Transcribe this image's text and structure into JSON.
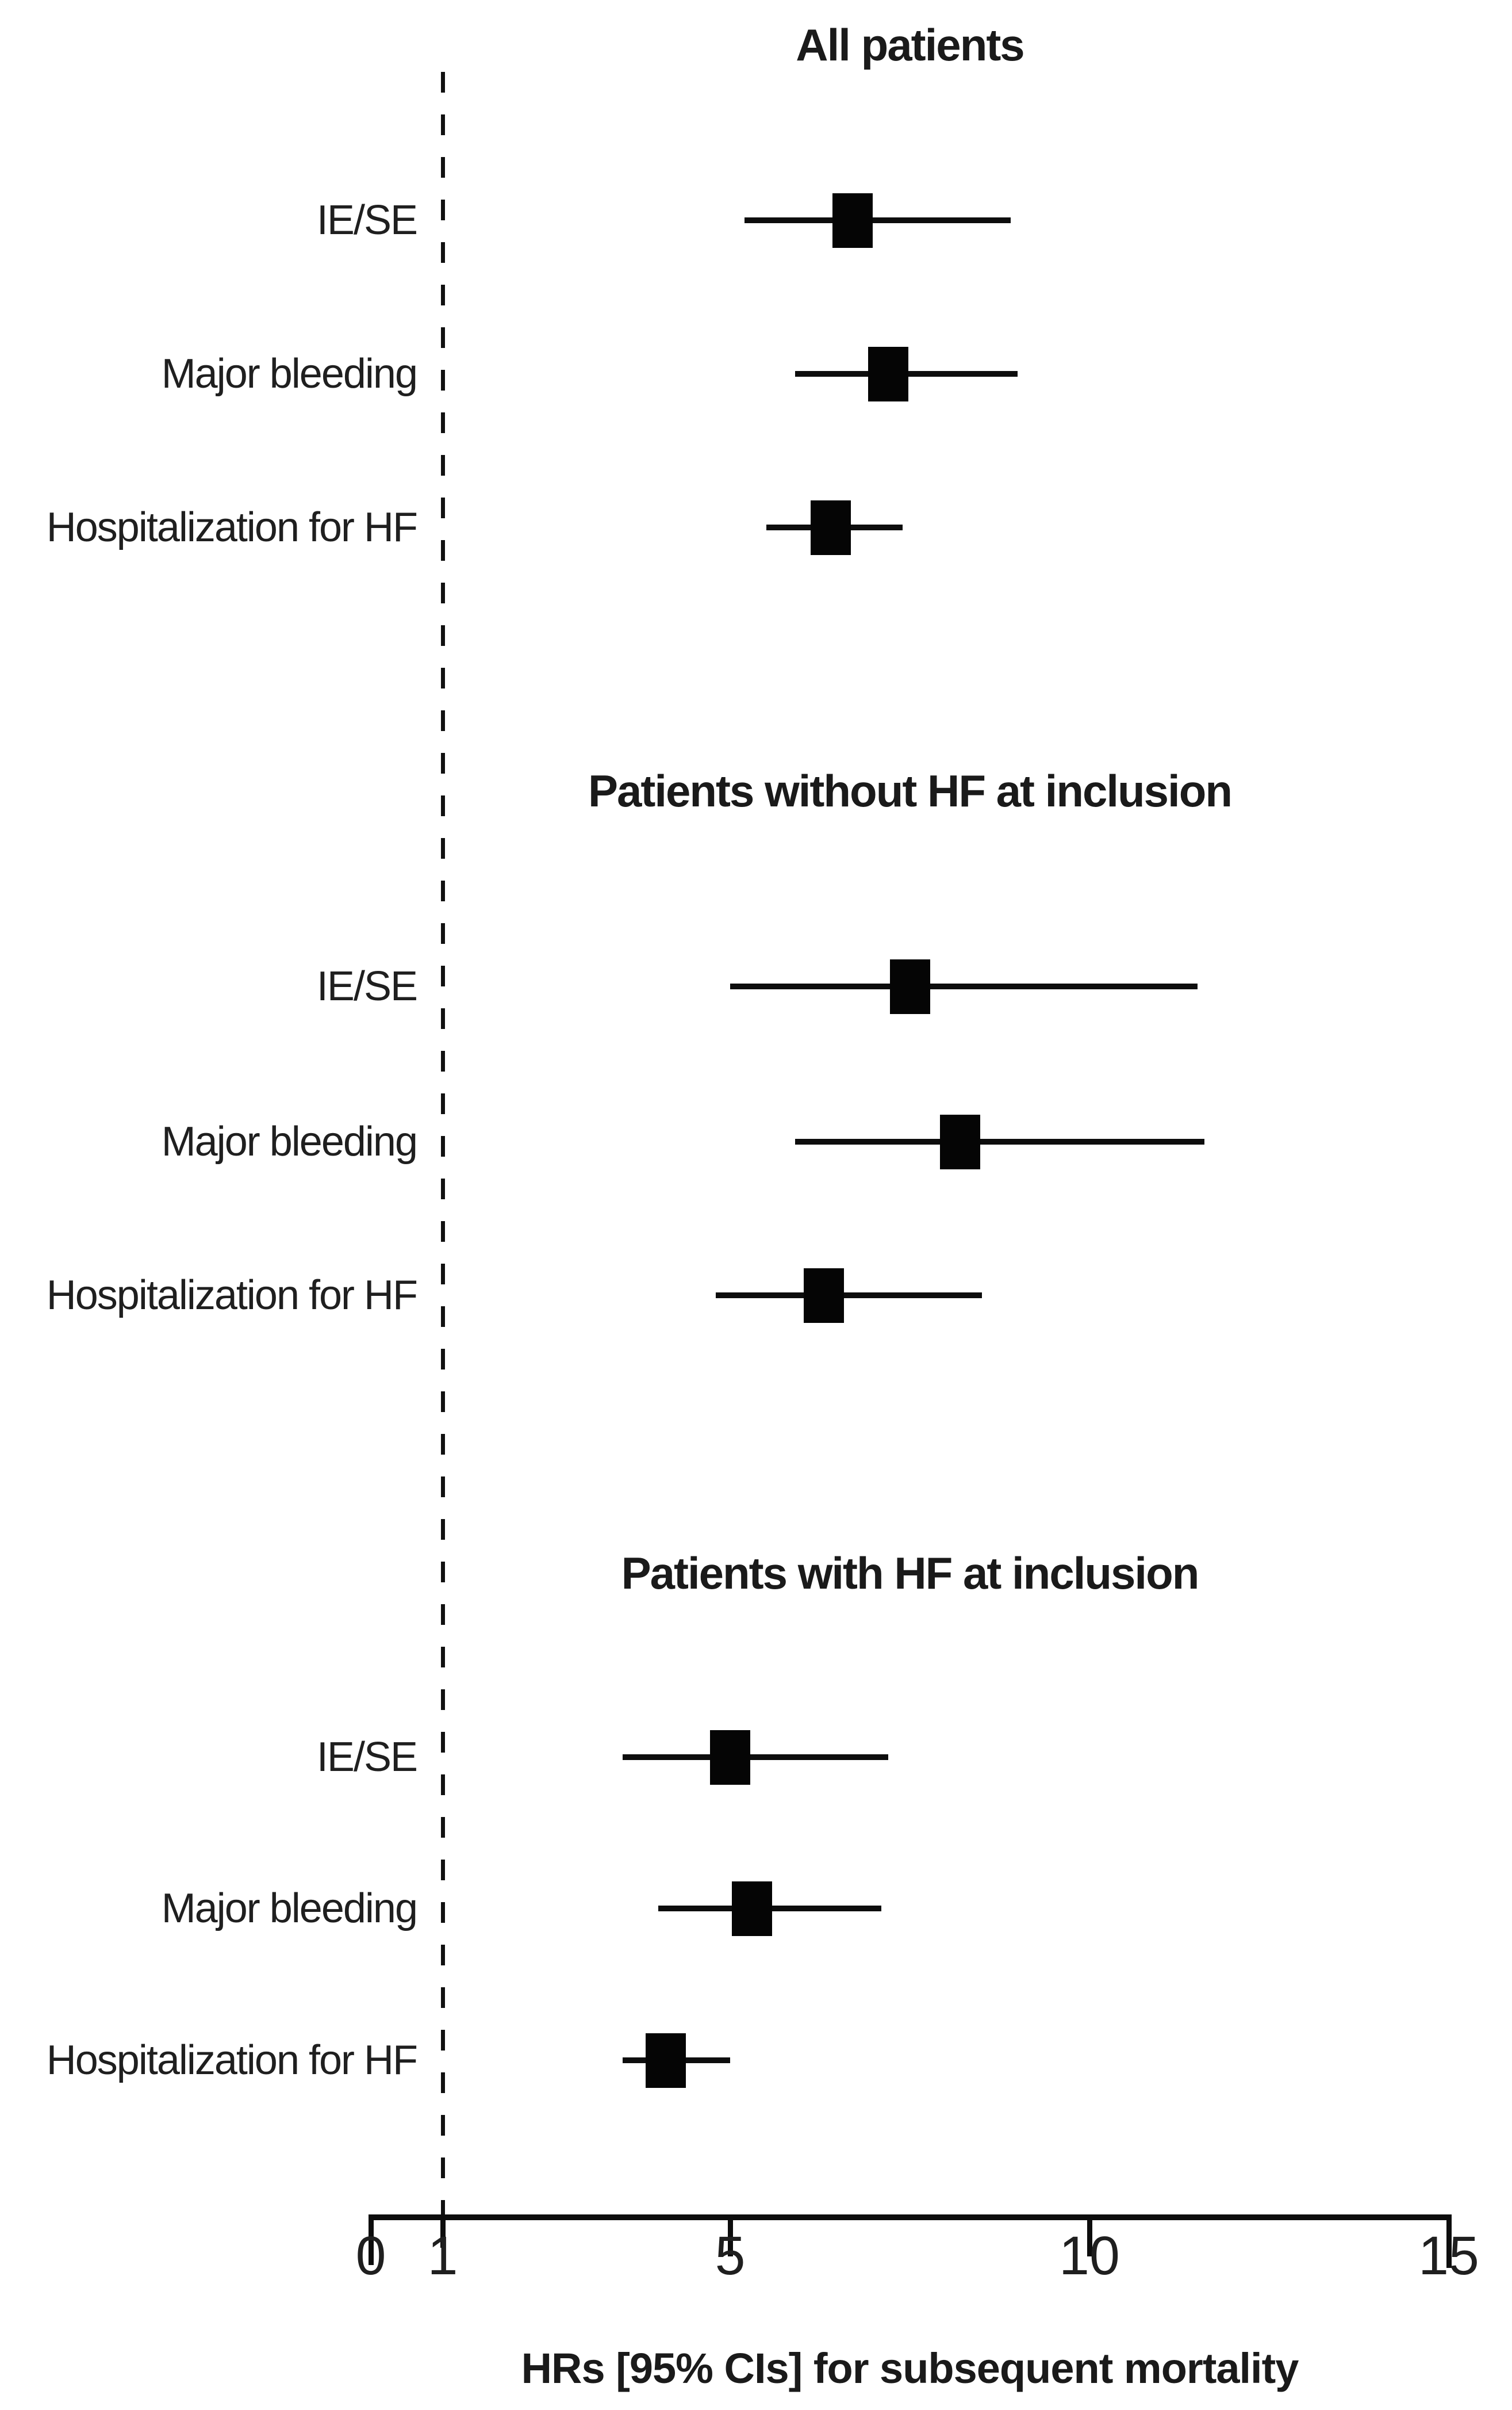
{
  "chart_data": {
    "type": "scatter",
    "subtype": "forest-plot",
    "xlabel": "HRs [95% CIs] for subsequent mortality",
    "x_ticks": [
      0,
      1,
      5,
      10,
      15
    ],
    "xlim": [
      0,
      15
    ],
    "reference_line": 1,
    "grid": false,
    "legend": "none",
    "groups": [
      {
        "title": "All patients",
        "rows": [
          {
            "label": "IE/SE",
            "hr": 6.7,
            "ci_low": 5.2,
            "ci_high": 8.9
          },
          {
            "label": "Major bleeding",
            "hr": 7.2,
            "ci_low": 5.9,
            "ci_high": 9.0
          },
          {
            "label": "Hospitalization for HF",
            "hr": 6.4,
            "ci_low": 5.5,
            "ci_high": 7.4
          }
        ]
      },
      {
        "title": "Patients without HF at inclusion",
        "rows": [
          {
            "label": "IE/SE",
            "hr": 7.5,
            "ci_low": 5.0,
            "ci_high": 11.5
          },
          {
            "label": "Major bleeding",
            "hr": 8.2,
            "ci_low": 5.9,
            "ci_high": 11.6
          },
          {
            "label": "Hospitalization for HF",
            "hr": 6.3,
            "ci_low": 4.8,
            "ci_high": 8.5
          }
        ]
      },
      {
        "title": "Patients with HF at inclusion",
        "rows": [
          {
            "label": "IE/SE",
            "hr": 5.0,
            "ci_low": 3.5,
            "ci_high": 7.2
          },
          {
            "label": "Major bleeding",
            "hr": 5.3,
            "ci_low": 4.0,
            "ci_high": 7.1
          },
          {
            "label": "Hospitalization for HF",
            "hr": 4.1,
            "ci_low": 3.5,
            "ci_high": 5.0
          }
        ]
      }
    ],
    "colors": {
      "marker": "#050505",
      "ci_line": "#0d0d0d",
      "axis": "#0d0d0d",
      "text": "#1a1a1a",
      "background": "#ffffff"
    }
  }
}
